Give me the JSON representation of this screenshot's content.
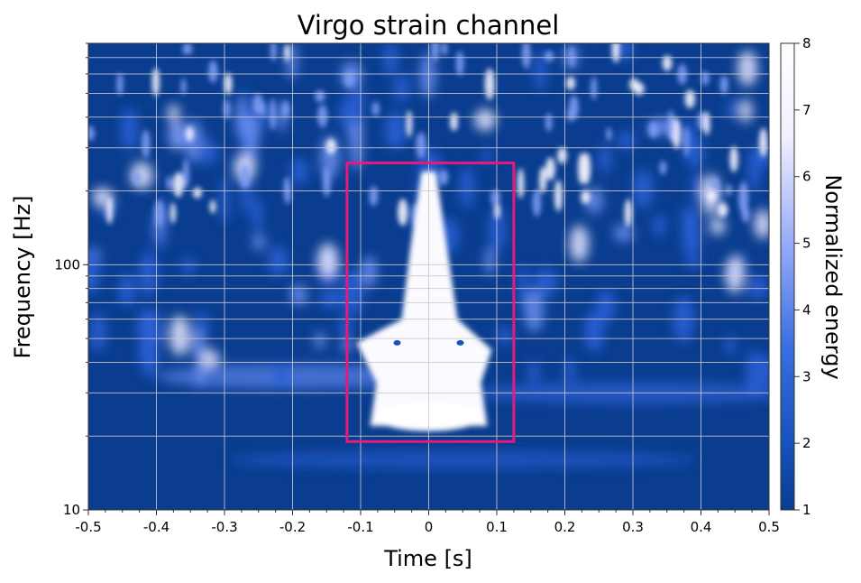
{
  "chart_data": {
    "type": "heatmap",
    "title": "Virgo strain channel",
    "xlabel": "Time [s]",
    "ylabel": "Frequency [Hz]",
    "xlim": [
      -0.5,
      0.5
    ],
    "ylim": [
      10,
      800
    ],
    "yscale": "log",
    "grid": true,
    "x_ticks": [
      -0.5,
      -0.4,
      -0.3,
      -0.2,
      -0.1,
      0,
      0.1,
      0.2,
      0.3,
      0.4,
      0.5
    ],
    "x_tick_labels": [
      "-0.5",
      "-0.4",
      "-0.3",
      "-0.2",
      "-0.1",
      "0",
      "0.1",
      "0.2",
      "0.3",
      "0.4",
      "0.5"
    ],
    "y_ticks": [
      10,
      100
    ],
    "y_tick_labels": [
      "10",
      "100"
    ],
    "colorbar": {
      "label": "Normalized energy",
      "range": [
        1,
        8
      ],
      "ticks": [
        1,
        2,
        3,
        4,
        5,
        6,
        7,
        8
      ],
      "tick_labels": [
        "1",
        "2",
        "3",
        "4",
        "5",
        "6",
        "7",
        "8"
      ],
      "colors": [
        "#0a3d8f",
        "#1753c0",
        "#3a6fe0",
        "#8ea6f7",
        "#f2efff",
        "#ffffff"
      ]
    },
    "annotation": {
      "type": "rectangle",
      "x_range": [
        -0.12,
        0.125
      ],
      "y_range": [
        19,
        260
      ],
      "color": "#e8197d"
    },
    "signal": {
      "description_type": "chirp",
      "center_time": 0.0,
      "freq_range": [
        20,
        240
      ],
      "peak_energy": 8
    },
    "background_color": "#0a3d8f"
  }
}
